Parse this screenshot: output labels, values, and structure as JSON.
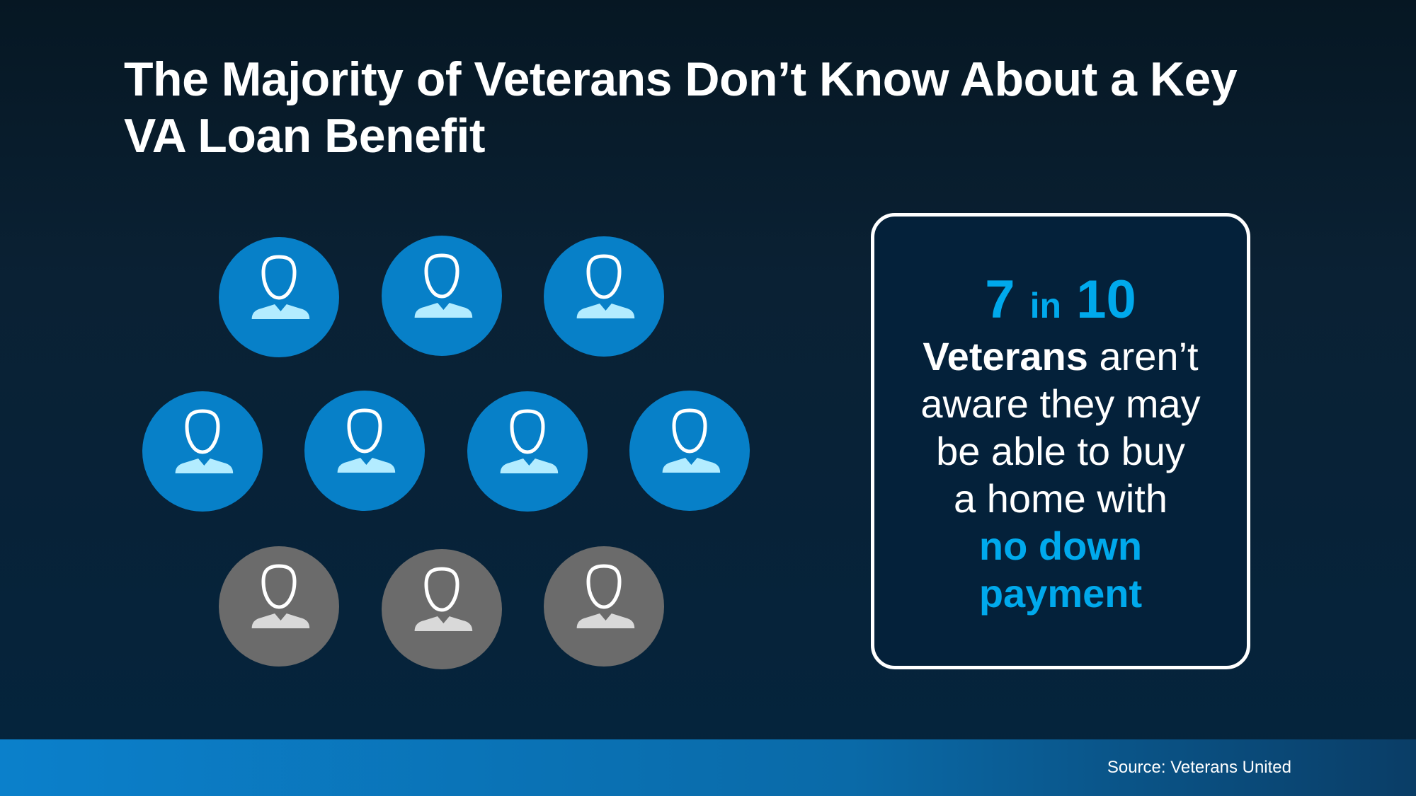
{
  "title": "The Majority of Veterans Don’t Know About a Key VA Loan Benefit",
  "people": {
    "total": 10,
    "highlighted": 7,
    "colors": {
      "highlighted": "#0780c8",
      "other": "#6b6b6b",
      "torso_highlighted": "#b3ecff",
      "torso_other": "#d9d9d9"
    },
    "icon": "person-icon"
  },
  "callout": {
    "stat_num1": "7",
    "stat_in": "in",
    "stat_num2": "10",
    "bold_word": "Veterans",
    "line1_rest": " aren’t",
    "line2": "aware they may",
    "line3": "be able to buy",
    "line4": "a home with",
    "highlight1": "no down",
    "highlight2": "payment",
    "accent_color": "#00a9ec"
  },
  "footer": {
    "source": "Source: Veterans United"
  }
}
